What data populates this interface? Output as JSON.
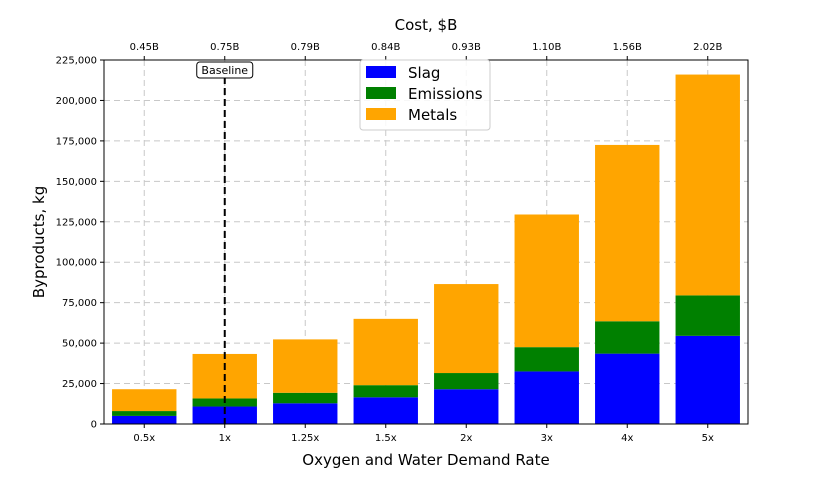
{
  "chart_data": {
    "type": "bar",
    "stacked": true,
    "categories": [
      "0.5x",
      "1x",
      "1.25x",
      "1.5x",
      "2x",
      "3x",
      "4x",
      "5x"
    ],
    "series": [
      {
        "name": "Slag",
        "color": "#0000ff",
        "values": [
          5000,
          10800,
          12800,
          16500,
          21500,
          32500,
          43500,
          54500
        ]
      },
      {
        "name": "Emissions",
        "color": "#008000",
        "values": [
          3000,
          5000,
          6500,
          7500,
          10000,
          15000,
          20000,
          25000
        ]
      },
      {
        "name": "Metals",
        "color": "#ffa500",
        "values": [
          13500,
          27500,
          33000,
          41000,
          55000,
          82000,
          109000,
          136500
        ]
      }
    ],
    "top_axis": {
      "title": "Cost, $B",
      "labels": [
        "0.45B",
        "0.75B",
        "0.79B",
        "0.84B",
        "0.93B",
        "1.10B",
        "1.56B",
        "2.02B"
      ]
    },
    "xlabel": "Oxygen and Water Demand Rate",
    "ylabel": "Byproducts, kg",
    "ylim": [
      0,
      225000
    ],
    "yticks": [
      0,
      25000,
      50000,
      75000,
      100000,
      125000,
      150000,
      175000,
      200000,
      225000
    ],
    "ytick_labels": [
      "0",
      "25,000",
      "50,000",
      "75,000",
      "100,000",
      "125,000",
      "150,000",
      "175,000",
      "200,000",
      "225,000"
    ],
    "annotation": {
      "text": "Baseline",
      "category": "1x",
      "style": "dashed vertical line"
    },
    "grid": true,
    "legend_position": "top-center"
  }
}
